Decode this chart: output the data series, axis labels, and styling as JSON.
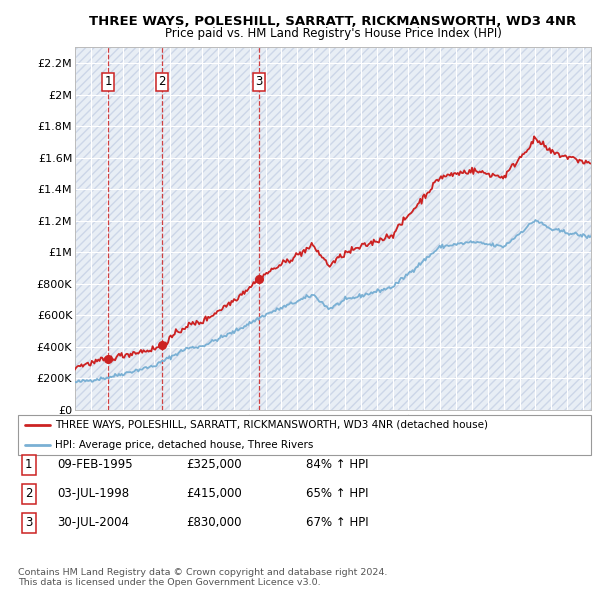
{
  "title": "THREE WAYS, POLESHILL, SARRATT, RICKMANSWORTH, WD3 4NR",
  "subtitle": "Price paid vs. HM Land Registry's House Price Index (HPI)",
  "ylim": [
    0,
    2300000
  ],
  "yticks": [
    0,
    200000,
    400000,
    600000,
    800000,
    1000000,
    1200000,
    1400000,
    1600000,
    1800000,
    2000000,
    2200000
  ],
  "ytick_labels": [
    "£0",
    "£200K",
    "£400K",
    "£600K",
    "£800K",
    "£1M",
    "£1.2M",
    "£1.4M",
    "£1.6M",
    "£1.8M",
    "£2M",
    "£2.2M"
  ],
  "bg_color": "#e8eef5",
  "hatch_color": "#ccd6e8",
  "sale_dates": [
    1995.1,
    1998.5,
    2004.58
  ],
  "sale_prices": [
    325000,
    415000,
    830000
  ],
  "sale_labels": [
    "1",
    "2",
    "3"
  ],
  "legend_line1": "THREE WAYS, POLESHILL, SARRATT, RICKMANSWORTH, WD3 4NR (detached house)",
  "legend_line2": "HPI: Average price, detached house, Three Rivers",
  "table_rows": [
    [
      "1",
      "09-FEB-1995",
      "£325,000",
      "84% ↑ HPI"
    ],
    [
      "2",
      "03-JUL-1998",
      "£415,000",
      "65% ↑ HPI"
    ],
    [
      "3",
      "30-JUL-2004",
      "£830,000",
      "67% ↑ HPI"
    ]
  ],
  "footer": "Contains HM Land Registry data © Crown copyright and database right 2024.\nThis data is licensed under the Open Government Licence v3.0.",
  "hpi_color": "#7ab0d4",
  "price_color": "#cc2222",
  "xlim_start": 1993,
  "xlim_end": 2025.5
}
